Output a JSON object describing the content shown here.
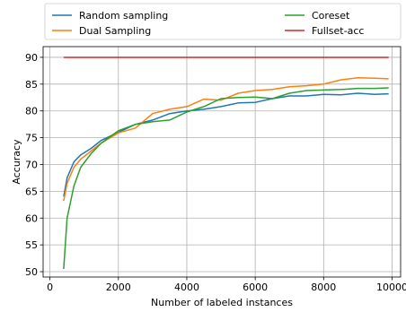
{
  "chart_data": {
    "type": "line",
    "title": "",
    "xlabel": "Number of labeled instances",
    "ylabel": "Accuracy",
    "xlim": [
      -200,
      10250
    ],
    "ylim": [
      49,
      92
    ],
    "x_ticks": [
      0,
      2000,
      4000,
      6000,
      8000,
      10000
    ],
    "y_ticks": [
      50,
      55,
      60,
      65,
      70,
      75,
      80,
      85,
      90
    ],
    "grid": true,
    "legend": "above-plot, two columns",
    "series": [
      {
        "name": "Random sampling",
        "color": "#1f77b4",
        "x": [
          400,
          500,
          700,
          900,
          1200,
          1500,
          2000,
          2500,
          3000,
          3500,
          4000,
          4500,
          5000,
          5500,
          6000,
          6500,
          7000,
          7500,
          8000,
          8500,
          9000,
          9500,
          9900
        ],
        "y": [
          64.0,
          67.5,
          70.5,
          71.8,
          73.0,
          74.5,
          76.0,
          77.5,
          78.3,
          79.5,
          80.0,
          80.3,
          80.8,
          81.5,
          81.6,
          82.3,
          82.8,
          82.8,
          83.1,
          83.0,
          83.3,
          83.1,
          83.2
        ]
      },
      {
        "name": "Dual Sampling",
        "color": "#ff7f0e",
        "x": [
          400,
          500,
          700,
          900,
          1200,
          1500,
          2000,
          2500,
          3000,
          3500,
          4000,
          4500,
          5000,
          5500,
          6000,
          6500,
          7000,
          7500,
          8000,
          8500,
          9000,
          9500,
          9900
        ],
        "y": [
          63.2,
          66.5,
          69.5,
          71.0,
          72.5,
          74.0,
          75.9,
          76.8,
          79.5,
          80.3,
          80.8,
          82.2,
          82.0,
          83.3,
          83.8,
          84.0,
          84.5,
          84.7,
          85.0,
          85.8,
          86.2,
          86.1,
          86.0
        ]
      },
      {
        "name": "Coreset",
        "color": "#2ca02c",
        "x": [
          400,
          500,
          700,
          900,
          1200,
          1500,
          2000,
          2500,
          3000,
          3500,
          4000,
          4500,
          5000,
          5500,
          6000,
          6500,
          7000,
          7500,
          8000,
          8500,
          9000,
          9500,
          9900
        ],
        "y": [
          50.5,
          60.0,
          66.0,
          69.5,
          72.0,
          74.0,
          76.3,
          77.5,
          78.0,
          78.3,
          79.8,
          80.8,
          82.3,
          82.5,
          82.6,
          82.3,
          83.3,
          83.8,
          83.9,
          84.0,
          84.2,
          84.2,
          84.3
        ]
      },
      {
        "name": "Fullset-acc",
        "color": "#d62728",
        "x": [
          400,
          9900
        ],
        "y": [
          90,
          90
        ]
      }
    ]
  }
}
